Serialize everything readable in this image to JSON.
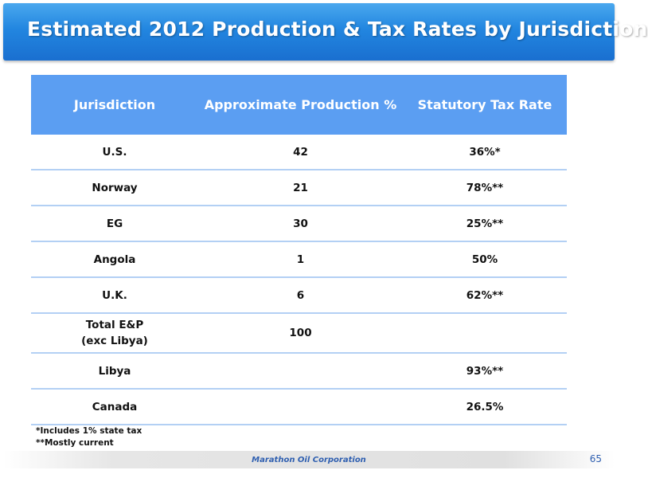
{
  "slide": {
    "title": "Estimated 2012 Production & Tax Rates by Jurisdiction",
    "company": "Marathon Oil Corporation",
    "page_number": "65"
  },
  "table": {
    "headers": [
      "Jurisdiction",
      "Approximate Production %",
      "Statutory Tax Rate"
    ],
    "rows": [
      {
        "jurisdiction": "U.S.",
        "production": "42",
        "tax_rate": "36%*"
      },
      {
        "jurisdiction": "Norway",
        "production": "21",
        "tax_rate": "78%**"
      },
      {
        "jurisdiction": "EG",
        "production": "30",
        "tax_rate": "25%**"
      },
      {
        "jurisdiction": "Angola",
        "production": "1",
        "tax_rate": "50%"
      },
      {
        "jurisdiction": "U.K.",
        "production": "6",
        "tax_rate": "62%**"
      },
      {
        "jurisdiction_line1": "Total E&P",
        "jurisdiction_line2": "(exc Libya)",
        "production": "100",
        "tax_rate": ""
      },
      {
        "jurisdiction": "Libya",
        "production": "",
        "tax_rate": "93%**"
      },
      {
        "jurisdiction": "Canada",
        "production": "",
        "tax_rate": "26.5%"
      }
    ]
  },
  "footnotes": [
    "*Includes 1% state tax",
    "**Mostly current"
  ],
  "colors": {
    "title_bar": "#2286e0",
    "header_row": "#5b9ef2",
    "row_divider": "#b3d0f4",
    "footer_text": "#2f5fb0"
  }
}
